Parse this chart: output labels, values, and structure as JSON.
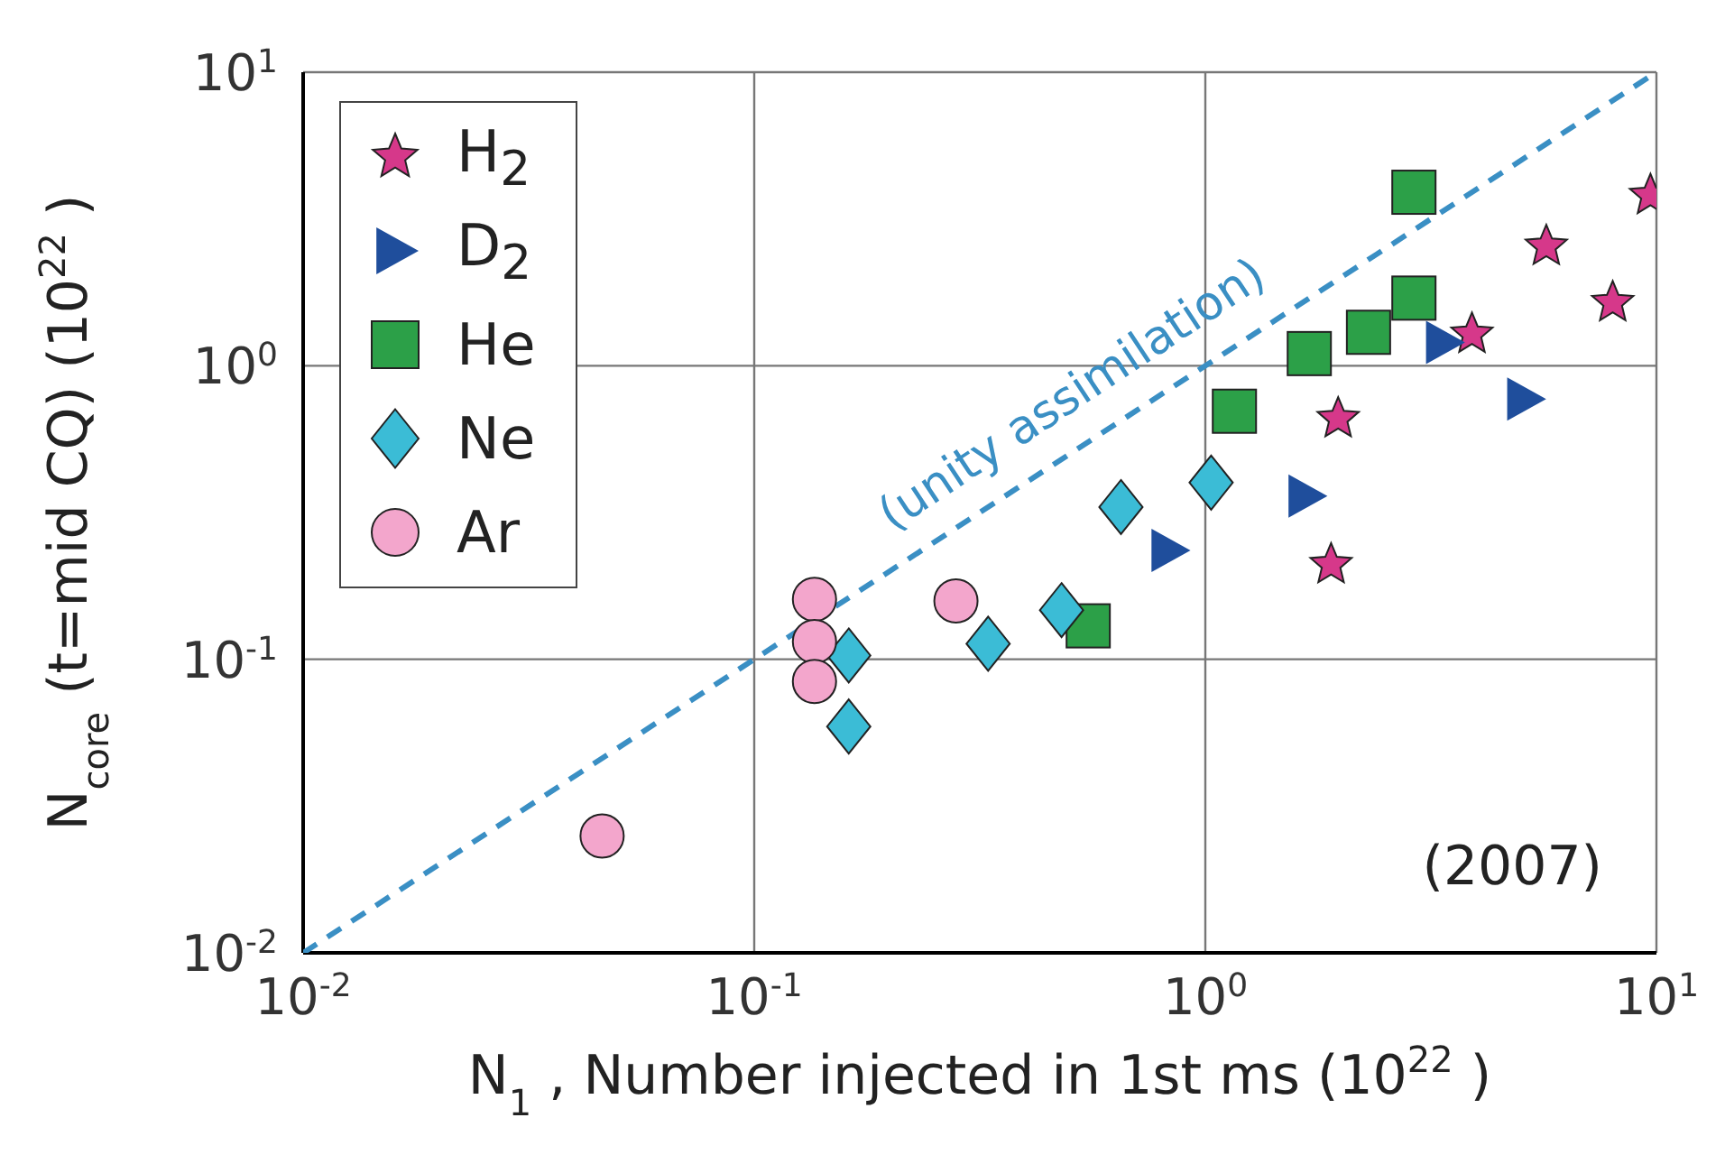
{
  "chart_data": {
    "type": "scatter",
    "xlabel": "N$_{1}$, Number injected in 1st ms (10$^{22}$)",
    "ylabel": "N$_{core}$  (t=mid CQ) (10$^{22}$)",
    "log": "xy",
    "xlim": [
      0.01,
      10
    ],
    "ylim": [
      0.01,
      10
    ],
    "xticks": [
      {
        "value": 0.01,
        "label": "10$^{-2}$"
      },
      {
        "value": 0.1,
        "label": "10$^{-1}$"
      },
      {
        "value": 1,
        "label": "10$^{0}$"
      },
      {
        "value": 10,
        "label": "10$^{1}$"
      }
    ],
    "yticks": [
      {
        "value": 0.01,
        "label": "10$^{-2}$"
      },
      {
        "value": 0.1,
        "label": "10$^{-1}$"
      },
      {
        "value": 1,
        "label": "10$^{0}$"
      },
      {
        "value": 10,
        "label": "10$^{1}$"
      }
    ],
    "grid": true,
    "legend": "top left",
    "series": [
      {
        "type": "line",
        "color": "#3a8fc4",
        "line_style": "dashed",
        "marker": "none",
        "x": [
          0.01,
          10
        ],
        "values": [
          0.01,
          10
        ]
      },
      {
        "name": "H$_{2}$",
        "color": "#d6388a",
        "marker": "star",
        "x": [
          9.7,
          5.7,
          8.0,
          3.9,
          1.97,
          1.9
        ],
        "values": [
          3.8,
          2.55,
          1.64,
          1.28,
          0.66,
          0.21
        ]
      },
      {
        "name": "D$_{2}$",
        "color": "#1f4e9c",
        "marker": "triangle",
        "x": [
          3.37,
          5.1,
          1.67,
          0.83
        ],
        "values": [
          1.2,
          0.77,
          0.36,
          0.235
        ]
      },
      {
        "name": "He",
        "color": "#2ca048",
        "marker": "square",
        "x": [
          2.9,
          2.9,
          2.3,
          1.7,
          1.16,
          0.55
        ],
        "values": [
          3.9,
          1.7,
          1.3,
          1.1,
          0.7,
          0.13
        ]
      },
      {
        "name": "Ne",
        "color": "#3bbcd6",
        "marker": "diamond",
        "x": [
          1.03,
          0.65,
          0.48,
          0.33,
          0.162,
          0.162
        ],
        "values": [
          0.4,
          0.33,
          0.147,
          0.113,
          0.103,
          0.059
        ]
      },
      {
        "name": "Ar",
        "color": "#f3a6cc",
        "marker": "circle",
        "x": [
          0.136,
          0.136,
          0.136,
          0.28,
          0.046
        ],
        "values": [
          0.16,
          0.115,
          0.084,
          0.158,
          0.025
        ]
      }
    ],
    "annotations": [
      {
        "text": "(unity assimilation)",
        "x": 0.5,
        "y": 0.5
      },
      "(2007)"
    ]
  }
}
